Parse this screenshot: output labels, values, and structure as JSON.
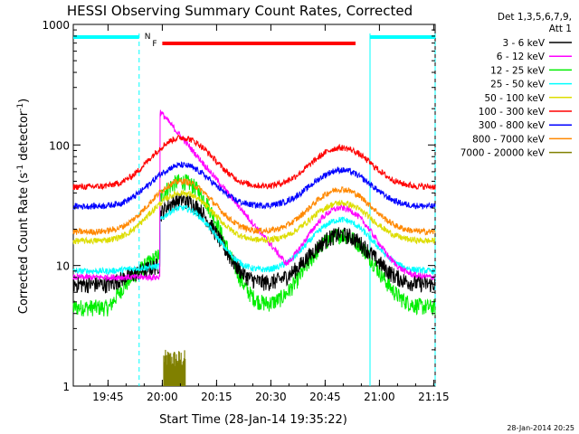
{
  "chart_data": {
    "type": "line",
    "title": "HESSI Observing Summary Count Rates, Corrected",
    "xlabel": "Start Time (28-Jan-14 19:35:22)",
    "ylabel_main": "Corrected Count Rate (s",
    "ylabel_sup1": "-1",
    "ylabel_mid": " detector",
    "ylabel_sup2": "-1",
    "ylabel_end": ")",
    "yscale": "log",
    "ylim": [
      1,
      1000
    ],
    "xlim_minutes": [
      0,
      100
    ],
    "x_ticks": [
      {
        "label": "19:45",
        "t": 9.6
      },
      {
        "label": "20:00",
        "t": 24.6
      },
      {
        "label": "20:15",
        "t": 39.6
      },
      {
        "label": "20:30",
        "t": 54.6
      },
      {
        "label": "20:45",
        "t": 69.6
      },
      {
        "label": "21:00",
        "t": 84.6
      },
      {
        "label": "21:15",
        "t": 99.6
      }
    ],
    "y_ticks": [
      {
        "label": "1",
        "v": 1
      },
      {
        "label": "10",
        "v": 10
      },
      {
        "label": "100",
        "v": 100
      },
      {
        "label": "1000",
        "v": 1000
      }
    ],
    "legend_header": [
      "Det 1,3,5,6,7,9,",
      "Att 1"
    ],
    "legend_position": "right",
    "series": [
      {
        "name": "3 - 6 keV",
        "color": "#000000",
        "base": 7.0,
        "peak1": 35,
        "peak2": 18
      },
      {
        "name": "6 - 12 keV",
        "color": "#ff00ff",
        "base": 8.0,
        "peak1": 190,
        "peak2": 30
      },
      {
        "name": "12 - 25 keV",
        "color": "#00ee00",
        "base": 4.5,
        "peak1": 50,
        "peak2": 18
      },
      {
        "name": "25 - 50 keV",
        "color": "#00ffff",
        "base": 9.0,
        "peak1": 30,
        "peak2": 24
      },
      {
        "name": "50 - 100 keV",
        "color": "#dddd00",
        "base": 16,
        "peak1": 40,
        "peak2": 33
      },
      {
        "name": "100 - 300 keV",
        "color": "#ff0000",
        "base": 45,
        "peak1": 115,
        "peak2": 95
      },
      {
        "name": "300 - 800 keV",
        "color": "#0000ff",
        "base": 31,
        "peak1": 68,
        "peak2": 62
      },
      {
        "name": "800 - 7000 keV",
        "color": "#ff8800",
        "base": 19,
        "peak1": 50,
        "peak2": 43
      },
      {
        "name": "7000 - 20000 keV",
        "color": "#808000",
        "base": 1,
        "peak1": 2,
        "peak2": 1
      }
    ],
    "flags": [
      {
        "label": "F",
        "color": "#ff0000",
        "start": 24.6,
        "end": 78.0
      },
      {
        "label": "N",
        "color": "#00ffff",
        "start": 0,
        "end": 18.2
      },
      {
        "label": "",
        "color": "#00ffff",
        "start": 82.0,
        "end": 100
      }
    ],
    "night_boundaries": [
      18.2,
      82.0,
      100
    ],
    "timestamp": "28-Jan-2014 20:25"
  }
}
